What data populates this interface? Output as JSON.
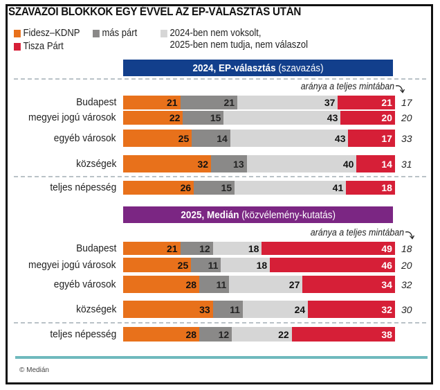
{
  "title": "SZAVAZÓI BLOKKOK EGY ÉVVEL AZ EP-VÁLASZTÁS UTÁN",
  "legend": [
    {
      "label": "Fidesz–KDNP",
      "color": "#e8711b"
    },
    {
      "label": "más párt",
      "color": "#8a8988"
    },
    {
      "label": "2024-ben nem voksolt,",
      "label2": "2025-ben nem tudja, nem válaszol",
      "color": "#d6d6d6"
    },
    {
      "label": "Tisza Párt",
      "color": "#d61f37"
    }
  ],
  "colors": {
    "fidesz": "#e8711b",
    "other": "#8a8988",
    "undecided": "#d6d6d6",
    "tisza": "#d61f37",
    "header2024": "#123f8c",
    "header2025": "#7b2683",
    "teal": "#6fb9bd"
  },
  "sections": [
    {
      "header_bold": "2024, EP-választás",
      "header_rest": "(szavazás)",
      "note": "aránya a teljes mintában"
    },
    {
      "header_bold": "2025, Medián",
      "header_rest": "(közvélemény-kutatás)",
      "note": "aránya a teljes mintában"
    }
  ],
  "source": "© Medián",
  "chart_data": [
    {
      "type": "bar",
      "stacked": true,
      "orientation": "horizontal",
      "title": "2024, EP-választás (szavazás)",
      "categories": [
        "Budapest",
        "megyei jogú városok",
        "egyéb városok",
        "községek",
        "teljes népesség"
      ],
      "series": [
        {
          "name": "Fidesz–KDNP",
          "values": [
            21,
            22,
            25,
            32,
            26
          ]
        },
        {
          "name": "más párt",
          "values": [
            21,
            15,
            14,
            13,
            15
          ]
        },
        {
          "name": "2024-ben nem voksolt, 2025-ben nem tudja, nem válaszol",
          "values": [
            37,
            43,
            43,
            40,
            41
          ]
        },
        {
          "name": "Tisza Párt",
          "values": [
            21,
            20,
            17,
            14,
            18
          ]
        }
      ],
      "share_label": "aránya a teljes mintában",
      "share_of_sample": [
        17,
        20,
        33,
        31,
        null
      ]
    },
    {
      "type": "bar",
      "stacked": true,
      "orientation": "horizontal",
      "title": "2025, Medián (közvélemény-kutatás)",
      "categories": [
        "Budapest",
        "megyei jogú városok",
        "egyéb városok",
        "községek",
        "teljes népesség"
      ],
      "series": [
        {
          "name": "Fidesz–KDNP",
          "values": [
            21,
            25,
            28,
            33,
            28
          ]
        },
        {
          "name": "más párt",
          "values": [
            12,
            11,
            11,
            11,
            12
          ]
        },
        {
          "name": "2024-ben nem voksolt, 2025-ben nem tudja, nem válaszol",
          "values": [
            18,
            18,
            27,
            24,
            22
          ]
        },
        {
          "name": "Tisza Párt",
          "values": [
            49,
            46,
            34,
            32,
            38
          ]
        }
      ],
      "share_label": "aránya a teljes mintában",
      "share_of_sample": [
        18,
        20,
        32,
        30,
        null
      ]
    }
  ]
}
